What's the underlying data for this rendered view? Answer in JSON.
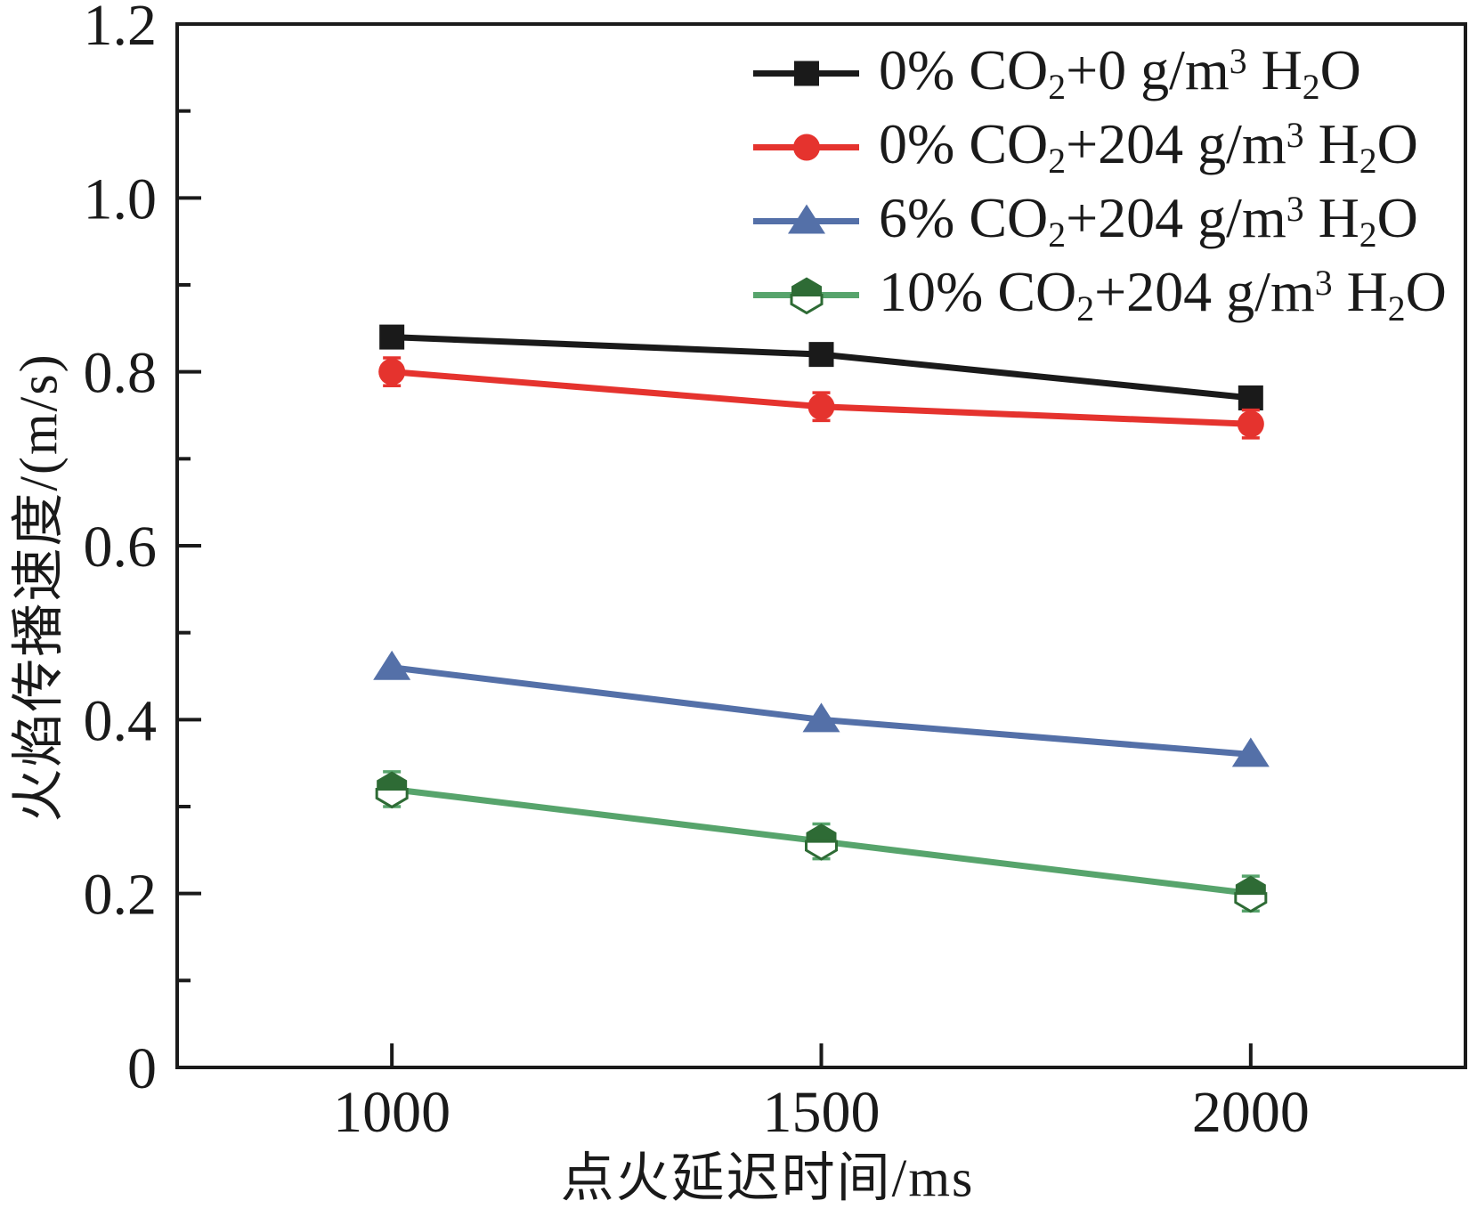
{
  "chart_data": {
    "type": "line",
    "title": "",
    "xlabel": "点火延迟时间/ms",
    "ylabel": "火焰传播速度/(m/s)",
    "x": [
      1000,
      1500,
      2000
    ],
    "xlim": [
      750,
      2250
    ],
    "ylim": [
      0,
      1.2
    ],
    "xtick_labels": [
      "1000",
      "1500",
      "2000"
    ],
    "xtick_values": [
      1000,
      1500,
      2000
    ],
    "ytick_labels": [
      "0",
      "0.2",
      "0.4",
      "0.6",
      "0.8",
      "1.0",
      "1.2"
    ],
    "ytick_values": [
      0,
      0.2,
      0.4,
      0.6,
      0.8,
      1.0,
      1.2
    ],
    "y_minor_tick_values": [
      0.1,
      0.3,
      0.5,
      0.7,
      0.9,
      1.1
    ],
    "grid": false,
    "legend_position": "upper right inside",
    "axis_color": "#1a1a1a",
    "background": "#ffffff",
    "series": [
      {
        "label": "0% CO₂+0 g/m³ H₂O",
        "color": "#1a1a1a",
        "marker": "square",
        "values": [
          0.84,
          0.82,
          0.77
        ]
      },
      {
        "label": "0% CO₂+204 g/m³ H₂O",
        "color": "#e5332e",
        "marker": "circle",
        "values": [
          0.8,
          0.76,
          0.74
        ],
        "yerr": 0.016
      },
      {
        "label": "6% CO₂+204 g/m³ H₂O",
        "color": "#5470a8",
        "marker": "triangle-up",
        "values": [
          0.46,
          0.4,
          0.36
        ]
      },
      {
        "label": "10% CO₂+204 g/m³ H₂O",
        "color": "#57a46c",
        "marker": "hexagon-half",
        "marker_fill": "#2e6b35",
        "values": [
          0.32,
          0.26,
          0.2
        ],
        "yerr": 0.02
      }
    ]
  }
}
